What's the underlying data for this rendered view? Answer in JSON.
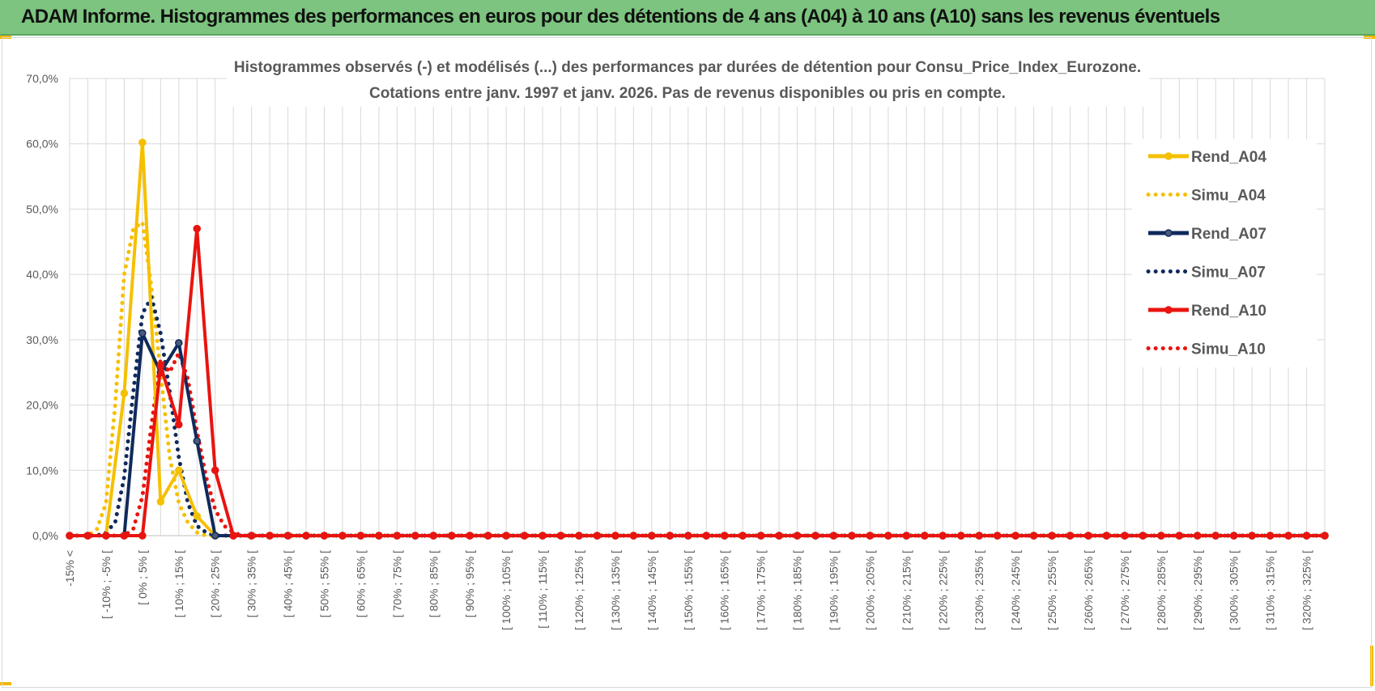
{
  "banner": {
    "title": "ADAM Informe. Histogrammes des performances en euros pour des détentions de 4 ans (A04) à 10 ans (A10) sans les revenus éventuels",
    "background": "#7cc47f"
  },
  "chart_data": {
    "type": "line",
    "title": "Histogrammes observés (-) et modélisés (...) des performances par durées de détention pour Consu_Price_Index_Eurozone.",
    "subtitle": "Cotations entre janv. 1997 et janv. 2026. Pas de revenus disponibles ou pris en compte.",
    "categories": [
      "-15% <",
      "[ -10% ; -5% [",
      "[ 0% ; 5% [",
      "[ 10% ; 15% [",
      "[ 20% ; 25% [",
      "[ 30% ; 35% [",
      "[ 40% ; 45% [",
      "[ 50% ; 55% [",
      "[ 60% ; 65% [",
      "[ 70% ; 75% [",
      "[ 80% ; 85% [",
      "[ 90% ; 95% [",
      "[ 100% ; 105% [",
      "[ 110% ; 115% [",
      "[ 120% ; 125% [",
      "[ 130% ; 135% [",
      "[ 140% ; 145% [",
      "[ 150% ; 155% [",
      "[ 160% ; 165% [",
      "[ 170% ; 175% [",
      "[ 180% ; 185% [",
      "[ 190% ; 195% [",
      "[ 200% ; 205% [",
      "[ 210% ; 215% [",
      "[ 220% ; 225% [",
      "[ 230% ; 235% [",
      "[ 240% ; 245% [",
      "[ 250% ; 255% [",
      "[ 260% ; 265% [",
      "[ 270% ; 275% [",
      "[ 280% ; 285% [",
      "[ 290% ; 295% [",
      "[ 300% ; 305% [",
      "[ 310% ; 315% [",
      "[ 320% ; 325% ["
    ],
    "x_step": 5,
    "x_start": -15,
    "ylim": [
      0,
      70
    ],
    "yticks": [
      "0,0%",
      "10,0%",
      "20,0%",
      "30,0%",
      "40,0%",
      "50,0%",
      "60,0%",
      "70,0%"
    ],
    "grid": true,
    "legend_position": "right",
    "series": [
      {
        "name": "Rend_A04",
        "style": "solid",
        "marker": "circle",
        "color": "#f5c000",
        "nonzero": {
          "0": 21.8,
          "5": 60.2,
          "10": 5.2,
          "15": 10,
          "20": 3,
          "25": 0
        }
      },
      {
        "name": "Simu_A04",
        "style": "dotted",
        "marker": "none",
        "color": "#f5c000",
        "nonzero": {
          "-7.5": 1,
          "-5": 5,
          "-2.5": 20,
          "0": 40,
          "2.5": 47,
          "5": 48,
          "7.5": 38,
          "10": 25,
          "12.5": 12,
          "15": 5,
          "17.5": 2,
          "20": 0.5
        }
      },
      {
        "name": "Rend_A07",
        "style": "solid",
        "marker": "circle",
        "color": "#0f2a5c",
        "nonzero": {
          "5": 31,
          "10": 25,
          "15": 29.5,
          "20": 14.5,
          "25": 0
        }
      },
      {
        "name": "Simu_A07",
        "style": "dotted",
        "marker": "none",
        "color": "#0f2a5c",
        "nonzero": {
          "-5": 0.5,
          "-2.5": 2,
          "0": 9,
          "2.5": 22,
          "5": 34,
          "7.5": 36.5,
          "10": 31,
          "12.5": 22,
          "15": 12,
          "17.5": 5,
          "20": 1.5,
          "22.5": 0.5
        }
      },
      {
        "name": "Rend_A10",
        "style": "solid",
        "marker": "circle",
        "color": "#e8140f",
        "nonzero": {
          "10": 26,
          "15": 17,
          "20": 47,
          "25": 10,
          "30": 0
        }
      },
      {
        "name": "Simu_A10",
        "style": "dotted",
        "marker": "none",
        "color": "#e8140f",
        "nonzero": {
          "2.5": 1,
          "5": 6,
          "7.5": 17,
          "10": 27,
          "12.5": 25,
          "15": 28,
          "17.5": 24,
          "20": 16,
          "22.5": 9,
          "25": 4,
          "27.5": 1.5,
          "30": 0.5
        }
      }
    ]
  }
}
